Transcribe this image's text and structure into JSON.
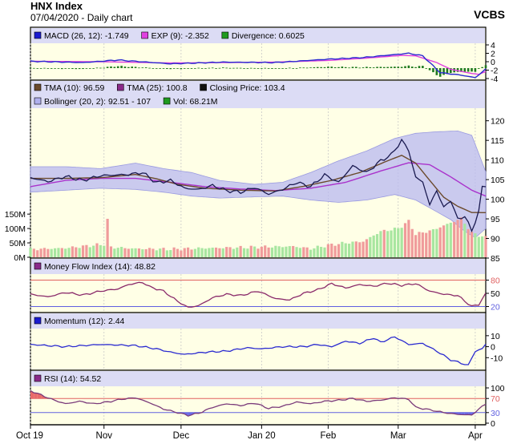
{
  "header": {
    "title": "HNX Index",
    "subtitle": "07/04/2020 - Daily chart",
    "brand": "VCBS"
  },
  "x_axis": {
    "labels": [
      "Oct 19",
      "Nov",
      "Dec",
      "Jan 20",
      "Feb",
      "Mar",
      "Apr"
    ],
    "label_index": [
      0,
      21,
      43,
      66,
      85,
      105,
      127
    ],
    "n": 131
  },
  "colors": {
    "panel_bg": "#ffffe6",
    "legend_bg": "#dcdcf5",
    "tma10": "#6b4a2c",
    "tma25": "#aa33cc",
    "close": "#1a1a50",
    "band_fill": "#b8b8f0",
    "vol_up": "#a8e6a0",
    "vol_down": "#f09b9b",
    "macd": "#2a2ad0",
    "exp": "#e040e0",
    "divergence": "#1f7a1f",
    "mfi": "#8a2a6a",
    "ref_high": "#e06060",
    "ref_low": "#6060e0",
    "momentum": "#2a2ad0",
    "rsi": "#7a3a7a"
  },
  "chart_data": [
    {
      "type": "line",
      "panel": "macd",
      "legend": [
        {
          "label": "MACD (26, 12): -1.749",
          "icon": "blue-square-icon"
        },
        {
          "label": "EXP (9): -2.352",
          "icon": "magenta-square-icon"
        },
        {
          "label": "Divergence: 0.6025",
          "icon": "green-square-icon"
        }
      ],
      "ylim": [
        -4,
        4
      ],
      "yticks": [
        4,
        2,
        0,
        -2,
        -4
      ],
      "macd_knots": [
        [
          0,
          0.1
        ],
        [
          15,
          -0.2
        ],
        [
          25,
          0.4
        ],
        [
          40,
          -0.5
        ],
        [
          55,
          -0.1
        ],
        [
          70,
          -0.2
        ],
        [
          85,
          0.6
        ],
        [
          95,
          1.0
        ],
        [
          108,
          2.0
        ],
        [
          112,
          1.4
        ],
        [
          117,
          -2.6
        ],
        [
          123,
          -3.2
        ],
        [
          127,
          -3.8
        ],
        [
          130,
          -1.749
        ]
      ],
      "exp_knots": [
        [
          0,
          0.1
        ],
        [
          20,
          0.0
        ],
        [
          40,
          -0.3
        ],
        [
          55,
          -0.2
        ],
        [
          70,
          -0.1
        ],
        [
          85,
          0.3
        ],
        [
          95,
          0.8
        ],
        [
          106,
          1.5
        ],
        [
          110,
          1.4
        ],
        [
          116,
          -0.2
        ],
        [
          120,
          -1.8
        ],
        [
          126,
          -2.8
        ],
        [
          128,
          -3.0
        ],
        [
          130,
          -2.352
        ]
      ]
    },
    {
      "type": "line",
      "panel": "price",
      "legend": [
        {
          "label": "TMA (10): 96.59",
          "icon": "brown-square-icon"
        },
        {
          "label": "TMA (25): 100.8",
          "icon": "purple-square-icon"
        },
        {
          "label": "Closing Price: 103.4",
          "icon": "black-square-icon"
        },
        {
          "label": "Bollinger (20, 2): 92.51 - 107",
          "icon": "lavender-square-icon"
        },
        {
          "label": "Vol: 68.21M",
          "icon": "green-square-icon"
        }
      ],
      "ylim": [
        85,
        123
      ],
      "yticks": [
        120,
        115,
        110,
        105,
        100,
        95,
        90,
        85
      ],
      "vol_yticks": [
        "150M",
        "100M",
        "50M",
        "0M"
      ],
      "vol_tick_values": [
        150,
        100,
        50,
        0
      ],
      "vol_max": 195,
      "close_knots": [
        [
          0,
          105.5
        ],
        [
          5,
          104.5
        ],
        [
          10,
          105.8
        ],
        [
          15,
          104.8
        ],
        [
          20,
          106
        ],
        [
          28,
          106.3
        ],
        [
          32,
          106.8
        ],
        [
          36,
          104.2
        ],
        [
          40,
          104.8
        ],
        [
          44,
          102.8
        ],
        [
          48,
          102.5
        ],
        [
          52,
          103.5
        ],
        [
          56,
          102.2
        ],
        [
          60,
          101.8
        ],
        [
          64,
          103
        ],
        [
          68,
          101.3
        ],
        [
          72,
          102.5
        ],
        [
          76,
          104.3
        ],
        [
          80,
          103.2
        ],
        [
          84,
          106.2
        ],
        [
          88,
          104.3
        ],
        [
          92,
          108.5
        ],
        [
          96,
          106.8
        ],
        [
          100,
          109.8
        ],
        [
          103,
          111.3
        ],
        [
          106,
          115
        ],
        [
          108,
          112.5
        ],
        [
          110,
          105.5
        ],
        [
          112,
          104.5
        ],
        [
          114,
          98.5
        ],
        [
          116,
          102.3
        ],
        [
          118,
          97.8
        ],
        [
          120,
          99.8
        ],
        [
          122,
          94.8
        ],
        [
          124,
          95.8
        ],
        [
          126,
          91.8
        ],
        [
          128,
          97
        ],
        [
          129,
          103
        ],
        [
          130,
          103.4
        ]
      ],
      "tma10_knots": [
        [
          0,
          105.3
        ],
        [
          10,
          105.3
        ],
        [
          20,
          105.5
        ],
        [
          30,
          106.3
        ],
        [
          36,
          105.2
        ],
        [
          42,
          103.8
        ],
        [
          50,
          102.8
        ],
        [
          60,
          102.3
        ],
        [
          70,
          102.1
        ],
        [
          78,
          103.3
        ],
        [
          86,
          104.8
        ],
        [
          94,
          106.8
        ],
        [
          102,
          109.8
        ],
        [
          106,
          111.2
        ],
        [
          110,
          109.2
        ],
        [
          114,
          104.8
        ],
        [
          118,
          100.5
        ],
        [
          122,
          98.2
        ],
        [
          126,
          96.6
        ],
        [
          130,
          96.59
        ]
      ],
      "tma25_knots": [
        [
          0,
          103.2
        ],
        [
          10,
          104.8
        ],
        [
          20,
          105.3
        ],
        [
          30,
          105.3
        ],
        [
          40,
          104.3
        ],
        [
          50,
          103.2
        ],
        [
          60,
          102.6
        ],
        [
          70,
          102.2
        ],
        [
          80,
          102.8
        ],
        [
          90,
          104.3
        ],
        [
          100,
          107.2
        ],
        [
          108,
          109.3
        ],
        [
          114,
          108.8
        ],
        [
          120,
          105.7
        ],
        [
          126,
          102.3
        ],
        [
          130,
          100.8
        ]
      ],
      "bb_upper_knots": [
        [
          0,
          108.3
        ],
        [
          10,
          108.3
        ],
        [
          20,
          107.8
        ],
        [
          30,
          109.2
        ],
        [
          38,
          107.8
        ],
        [
          46,
          106.8
        ],
        [
          54,
          104.8
        ],
        [
          64,
          103.8
        ],
        [
          72,
          104.3
        ],
        [
          80,
          106.8
        ],
        [
          88,
          109.8
        ],
        [
          96,
          112.3
        ],
        [
          104,
          115.5
        ],
        [
          110,
          116.8
        ],
        [
          116,
          117.2
        ],
        [
          122,
          117.4
        ],
        [
          126,
          116.3
        ],
        [
          130,
          107
        ]
      ],
      "bb_lower_knots": [
        [
          0,
          101.8
        ],
        [
          10,
          102.3
        ],
        [
          20,
          102.8
        ],
        [
          30,
          102.5
        ],
        [
          38,
          101.8
        ],
        [
          46,
          100.8
        ],
        [
          54,
          100.3
        ],
        [
          64,
          100.6
        ],
        [
          72,
          100.8
        ],
        [
          80,
          99.8
        ],
        [
          88,
          99.2
        ],
        [
          96,
          99.8
        ],
        [
          104,
          101.2
        ],
        [
          110,
          99.8
        ],
        [
          116,
          96.8
        ],
        [
          120,
          94.8
        ],
        [
          124,
          91.8
        ],
        [
          127,
          90.2
        ],
        [
          130,
          92.51
        ]
      ],
      "volume_knots": [
        [
          0,
          28
        ],
        [
          10,
          32
        ],
        [
          21,
          45
        ],
        [
          22,
          130
        ],
        [
          23,
          35
        ],
        [
          30,
          30
        ],
        [
          40,
          28
        ],
        [
          50,
          32
        ],
        [
          60,
          34
        ],
        [
          66,
          36
        ],
        [
          75,
          38
        ],
        [
          80,
          30
        ],
        [
          85,
          42
        ],
        [
          90,
          50
        ],
        [
          95,
          55
        ],
        [
          100,
          90
        ],
        [
          105,
          100
        ],
        [
          108,
          125
        ],
        [
          110,
          80
        ],
        [
          115,
          95
        ],
        [
          120,
          120
        ],
        [
          123,
          135
        ],
        [
          126,
          85
        ],
        [
          130,
          68.21
        ]
      ]
    },
    {
      "type": "line",
      "panel": "mfi",
      "legend": [
        {
          "label": "Money Flow Index (14): 48.82",
          "icon": "purple-square-icon"
        }
      ],
      "ylim": [
        10,
        90
      ],
      "yticks": [
        80,
        50,
        20
      ],
      "ref_lines": [
        80,
        20
      ],
      "knots": [
        [
          0,
          48
        ],
        [
          5,
          42
        ],
        [
          10,
          52
        ],
        [
          15,
          46
        ],
        [
          20,
          55
        ],
        [
          25,
          60
        ],
        [
          28,
          70
        ],
        [
          32,
          75
        ],
        [
          34,
          65
        ],
        [
          38,
          55
        ],
        [
          42,
          32
        ],
        [
          45,
          18
        ],
        [
          48,
          22
        ],
        [
          52,
          40
        ],
        [
          56,
          48
        ],
        [
          60,
          45
        ],
        [
          65,
          55
        ],
        [
          70,
          38
        ],
        [
          74,
          35
        ],
        [
          78,
          50
        ],
        [
          82,
          58
        ],
        [
          86,
          72
        ],
        [
          90,
          62
        ],
        [
          94,
          70
        ],
        [
          98,
          66
        ],
        [
          102,
          73
        ],
        [
          106,
          68
        ],
        [
          110,
          72
        ],
        [
          114,
          55
        ],
        [
          118,
          48
        ],
        [
          122,
          45
        ],
        [
          126,
          20
        ],
        [
          128,
          25
        ],
        [
          130,
          48.82
        ]
      ]
    },
    {
      "type": "line",
      "panel": "momentum",
      "legend": [
        {
          "label": "Momentum (12): 2.44",
          "icon": "blue-square-icon"
        }
      ],
      "ylim": [
        -20,
        15
      ],
      "yticks": [
        10,
        0,
        -10
      ],
      "knots": [
        [
          0,
          2
        ],
        [
          10,
          0
        ],
        [
          20,
          2
        ],
        [
          30,
          1
        ],
        [
          36,
          -2
        ],
        [
          40,
          -5
        ],
        [
          44,
          -7
        ],
        [
          50,
          -5
        ],
        [
          56,
          -4
        ],
        [
          62,
          -1
        ],
        [
          66,
          -2
        ],
        [
          72,
          0
        ],
        [
          78,
          0
        ],
        [
          82,
          2
        ],
        [
          86,
          0
        ],
        [
          90,
          5
        ],
        [
          94,
          3
        ],
        [
          98,
          8
        ],
        [
          100,
          4
        ],
        [
          104,
          9
        ],
        [
          108,
          2
        ],
        [
          112,
          3
        ],
        [
          116,
          -4
        ],
        [
          120,
          -12
        ],
        [
          123,
          -15
        ],
        [
          125,
          -17
        ],
        [
          127,
          -4
        ],
        [
          129,
          -2
        ],
        [
          130,
          2.44
        ]
      ]
    },
    {
      "type": "line",
      "panel": "rsi",
      "legend": [
        {
          "label": "RSI (14): 54.52",
          "icon": "purple-square-icon"
        }
      ],
      "ylim": [
        0,
        100
      ],
      "yticks": [
        100,
        70,
        30,
        0
      ],
      "ref_lines": [
        70,
        30
      ],
      "knots": [
        [
          0,
          92
        ],
        [
          3,
          80
        ],
        [
          6,
          68
        ],
        [
          10,
          55
        ],
        [
          14,
          62
        ],
        [
          18,
          55
        ],
        [
          22,
          60
        ],
        [
          26,
          68
        ],
        [
          30,
          72
        ],
        [
          34,
          58
        ],
        [
          38,
          40
        ],
        [
          42,
          30
        ],
        [
          45,
          22
        ],
        [
          48,
          28
        ],
        [
          52,
          45
        ],
        [
          56,
          55
        ],
        [
          60,
          50
        ],
        [
          64,
          57
        ],
        [
          68,
          42
        ],
        [
          72,
          48
        ],
        [
          76,
          60
        ],
        [
          80,
          55
        ],
        [
          84,
          62
        ],
        [
          88,
          65
        ],
        [
          92,
          70
        ],
        [
          96,
          62
        ],
        [
          100,
          65
        ],
        [
          104,
          72
        ],
        [
          108,
          68
        ],
        [
          110,
          45
        ],
        [
          114,
          38
        ],
        [
          118,
          30
        ],
        [
          122,
          25
        ],
        [
          126,
          23
        ],
        [
          128,
          40
        ],
        [
          130,
          54.52
        ]
      ]
    }
  ]
}
